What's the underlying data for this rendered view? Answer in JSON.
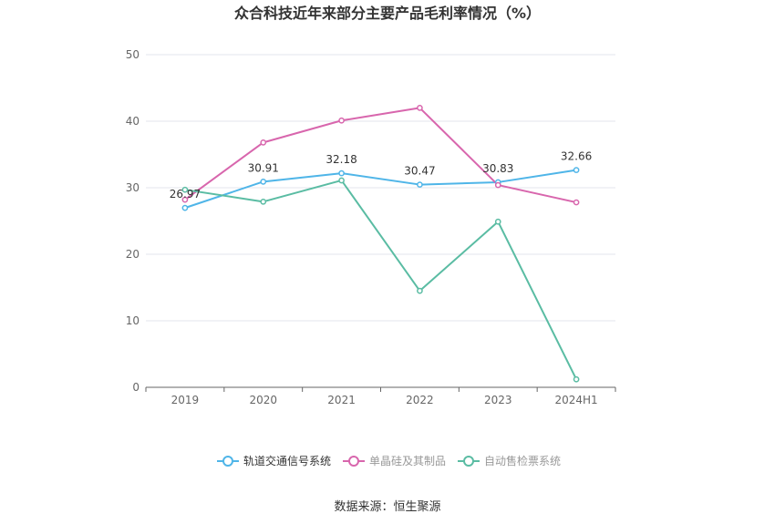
{
  "chart_data": {
    "type": "line",
    "title": "众合科技近年来部分主要产品毛利率情况（%）",
    "categories": [
      "2019",
      "2020",
      "2021",
      "2022",
      "2023",
      "2024H1"
    ],
    "ylim": [
      0,
      50
    ],
    "yticks": [
      0,
      10,
      20,
      30,
      40,
      50
    ],
    "grid": true,
    "legend_position": "bottom",
    "series": [
      {
        "name": "轨道交通信号系统",
        "color": "#4fb5e8",
        "values": [
          26.97,
          30.91,
          32.18,
          30.47,
          30.83,
          32.66
        ],
        "labels": [
          "26.97",
          "30.91",
          "32.18",
          "30.47",
          "30.83",
          "32.66"
        ]
      },
      {
        "name": "单晶硅及其制品",
        "color": "#d866ad",
        "values": [
          28.2,
          36.8,
          40.1,
          42.0,
          30.4,
          27.8
        ]
      },
      {
        "name": "自动售检票系统",
        "color": "#5abca3",
        "values": [
          29.7,
          27.9,
          31.1,
          14.5,
          24.9,
          1.2
        ]
      }
    ],
    "source": "数据来源：恒生聚源"
  }
}
